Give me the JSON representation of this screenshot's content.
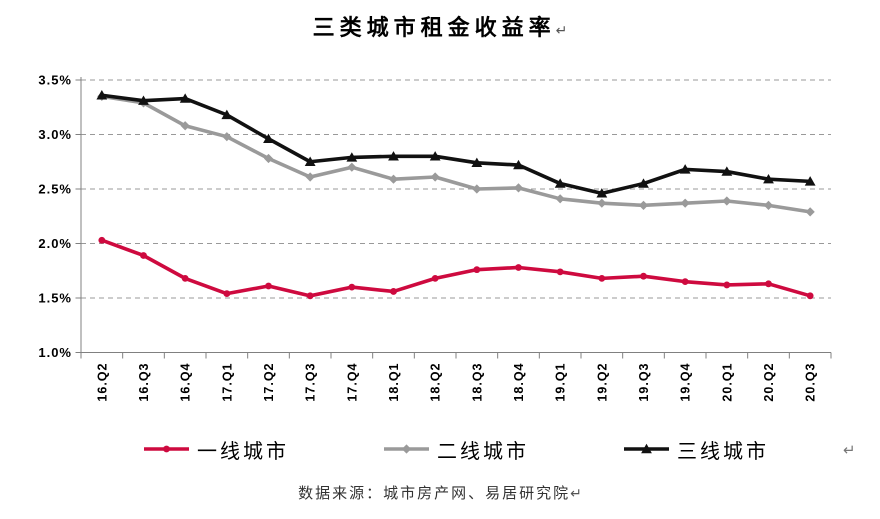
{
  "title": {
    "text": "三类城市租金收益率",
    "return_mark": "↵"
  },
  "source_note": {
    "text": "数据来源：城市房产网、易居研究院",
    "return_mark": "↵"
  },
  "stray_return_mark": "↵",
  "chart_data": {
    "type": "line",
    "title": "三类城市租金收益率",
    "categories": [
      "16.Q2",
      "16.Q3",
      "16.Q4",
      "17.Q1",
      "17.Q2",
      "17.Q3",
      "17.Q4",
      "18.Q1",
      "18.Q2",
      "18.Q3",
      "18.Q4",
      "19.Q1",
      "19.Q2",
      "19.Q3",
      "19.Q4",
      "20.Q1",
      "20.Q2",
      "20.Q3"
    ],
    "series": [
      {
        "name": "一线城市",
        "color": "#CE0A3F",
        "marker": "circle",
        "values": [
          2.03,
          1.89,
          1.68,
          1.54,
          1.61,
          1.52,
          1.6,
          1.56,
          1.68,
          1.76,
          1.78,
          1.74,
          1.68,
          1.7,
          1.65,
          1.62,
          1.63,
          1.52
        ]
      },
      {
        "name": "二线城市",
        "color": "#9A9A9A",
        "marker": "diamond",
        "values": [
          3.35,
          3.29,
          3.08,
          2.98,
          2.78,
          2.61,
          2.7,
          2.59,
          2.61,
          2.5,
          2.51,
          2.41,
          2.37,
          2.35,
          2.37,
          2.39,
          2.35,
          2.29
        ]
      },
      {
        "name": "三线城市",
        "color": "#111111",
        "marker": "triangle",
        "values": [
          3.36,
          3.31,
          3.33,
          3.18,
          2.96,
          2.75,
          2.79,
          2.8,
          2.8,
          2.74,
          2.72,
          2.55,
          2.46,
          2.55,
          2.68,
          2.66,
          2.59,
          2.57
        ]
      }
    ],
    "y_axis": {
      "ticks": [
        "3.5%",
        "3.0%",
        "2.5%",
        "2.0%",
        "1.5%",
        "1.0%"
      ],
      "min": 1.0,
      "max": 3.5,
      "step": 0.5,
      "unit": "percent"
    },
    "x_axis": {
      "label_rotation": -90
    },
    "ylim": [
      1.0,
      3.5
    ],
    "grid": {
      "dashed": true,
      "color": "#999999"
    },
    "axis_color": "#808080",
    "legend_position": "bottom"
  }
}
